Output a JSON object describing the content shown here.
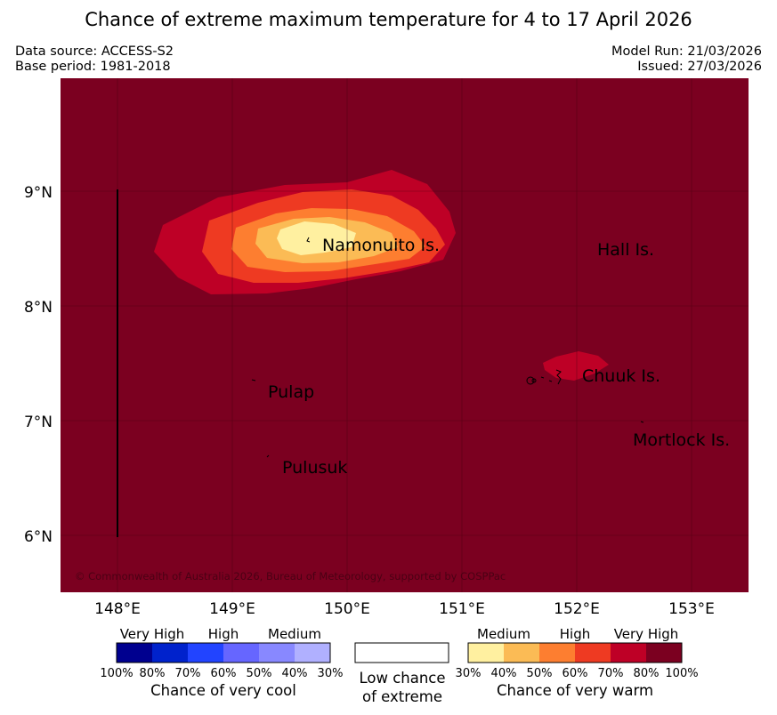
{
  "title": "Chance of extreme maximum temperature for 4 to 17 April 2026",
  "meta": {
    "data_source": "Data source: ACCESS-S2",
    "base_period": "Base period: 1981-2018",
    "model_run": "Model Run: 21/03/2026",
    "issued": "Issued: 27/03/2026"
  },
  "map": {
    "background_color": "#7b0020",
    "lat_labels": [
      "9°N",
      "8°N",
      "7°N",
      "6°N"
    ],
    "lon_labels": [
      "148°E",
      "149°E",
      "150°E",
      "151°E",
      "152°E",
      "153°E"
    ],
    "places": [
      "Namonuito Is.",
      "Hall Is.",
      "Pulap",
      "Chuuk Is.",
      "Mortlock Is.",
      "Pulusuk"
    ],
    "copyright": "© Commonwealth of Australia 2026, Bureau of Meteorology, supported by COSPPac"
  },
  "legend": {
    "cool": {
      "headings": [
        "Very High",
        "High",
        "Medium"
      ],
      "colors": [
        "#00008f",
        "#0022cc",
        "#2244ff",
        "#6666ff",
        "#8888ff",
        "#b0b0ff"
      ],
      "ticks": [
        "100%",
        "80%",
        "70%",
        "60%",
        "50%",
        "40%",
        "30%"
      ],
      "caption": "Chance of very cool"
    },
    "neutral": {
      "line1": "Low chance",
      "line2": "of extreme"
    },
    "warm": {
      "headings": [
        "Medium",
        "High",
        "Very High"
      ],
      "colors": [
        "#fff0a0",
        "#fbbb55",
        "#fd7e30",
        "#ee3a22",
        "#be0026",
        "#7b0020"
      ],
      "ticks": [
        "30%",
        "40%",
        "50%",
        "60%",
        "70%",
        "80%",
        "100%"
      ],
      "caption": "Chance of very warm"
    }
  }
}
